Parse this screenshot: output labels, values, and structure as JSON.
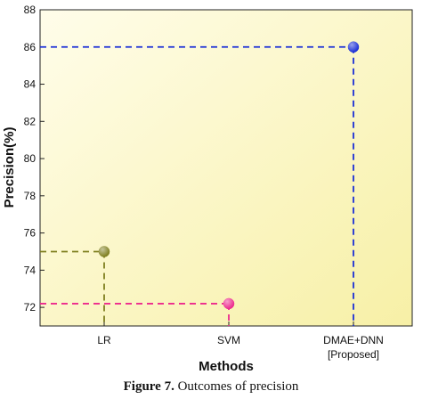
{
  "chart_data": {
    "type": "scatter",
    "xlabel": "Methods",
    "ylabel": "Precision(%)",
    "ylim": [
      71,
      88
    ],
    "yticks": [
      72,
      74,
      76,
      78,
      80,
      82,
      84,
      86,
      88
    ],
    "grid": false,
    "categories": [
      {
        "lines": [
          "LR"
        ]
      },
      {
        "lines": [
          "SVM"
        ]
      },
      {
        "lines": [
          "DMAE+DNN",
          "[Proposed]"
        ]
      }
    ],
    "values": [
      75,
      72.2,
      86
    ],
    "colors": [
      "#7f7f1f",
      "#ec2a8d",
      "#1b2fd6"
    ],
    "background_gradient": [
      "#fffdea",
      "#f7f0a6"
    ]
  },
  "caption": {
    "label": "Figure 7.",
    "text": "Outcomes of precision"
  }
}
